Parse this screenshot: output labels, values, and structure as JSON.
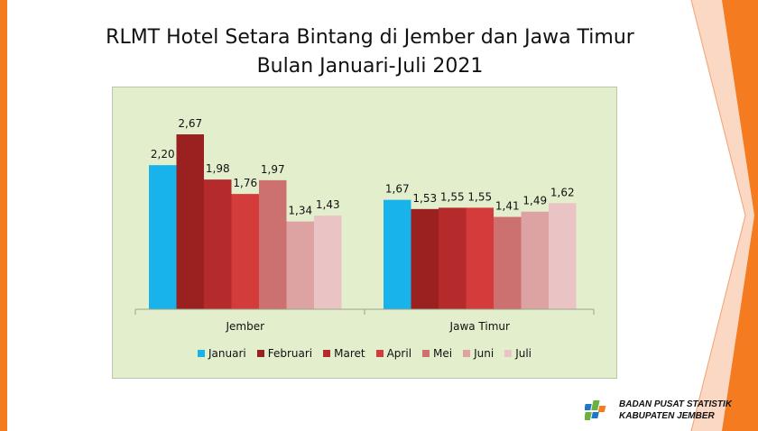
{
  "title_line1": "RLMT Hotel Setara Bintang di Jember dan Jawa Timur",
  "title_line2": "Bulan Januari-Juli 2021",
  "logo": {
    "line1": "BADAN PUSAT STATISTIK",
    "line2": "KABUPATEN JEMBER"
  },
  "chart_data": {
    "type": "bar",
    "title": "RLMT Hotel Setara Bintang di Jember dan Jawa Timur Bulan Januari-Juli 2021",
    "categories": [
      "Jember",
      "Jawa Timur"
    ],
    "series": [
      {
        "name": "Januari",
        "values": [
          2.2,
          1.67
        ],
        "labels": [
          "2,20",
          "1,67"
        ],
        "color": "#17b3ea"
      },
      {
        "name": "Februari",
        "values": [
          2.67,
          1.53
        ],
        "labels": [
          "2,67",
          "1,53"
        ],
        "color": "#9b2020"
      },
      {
        "name": "Maret",
        "values": [
          1.98,
          1.55
        ],
        "labels": [
          "1,98",
          "1,55"
        ],
        "color": "#b52a2a"
      },
      {
        "name": "April",
        "values": [
          1.76,
          1.55
        ],
        "labels": [
          "1,76",
          "1,55"
        ],
        "color": "#d43b3b"
      },
      {
        "name": "Mei",
        "values": [
          1.97,
          1.41
        ],
        "labels": [
          "1,97",
          "1,41"
        ],
        "color": "#cc7070"
      },
      {
        "name": "Juni",
        "values": [
          1.34,
          1.49
        ],
        "labels": [
          "1,34",
          "1,49"
        ],
        "color": "#dda2a2"
      },
      {
        "name": "Juli",
        "values": [
          1.43,
          1.62
        ],
        "labels": [
          "1,43",
          "1,62"
        ],
        "color": "#eac4c4"
      }
    ],
    "ylim": [
      0,
      3
    ],
    "grid": false,
    "legend": "bottom"
  }
}
